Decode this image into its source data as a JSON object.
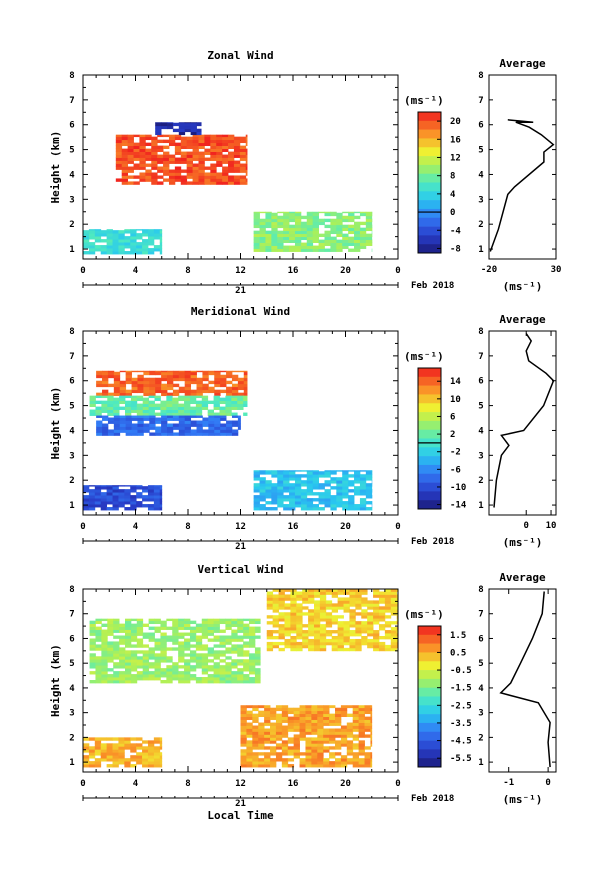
{
  "figure": {
    "date_label": "Feb 2018",
    "day_label": "21",
    "bottom_xlabel": "Local Time",
    "ylabel": "Height (km)",
    "cbar_unit": "(ms⁻¹)",
    "avg_title": "Average",
    "avg_unit": "(ms⁻¹)"
  },
  "chart_data": [
    {
      "type": "heatmap",
      "title": "Zonal Wind",
      "xlabel": "",
      "ylabel": "Height (km)",
      "xlim": [
        0,
        24
      ],
      "ylim": [
        0.6,
        8
      ],
      "x_ticks": [
        "0",
        "4",
        "8",
        "12",
        "16",
        "20",
        "0"
      ],
      "y_ticks": [
        "1",
        "2",
        "3",
        "4",
        "5",
        "6",
        "7",
        "8"
      ],
      "colorbar": {
        "unit": "(ms⁻¹)",
        "range": [
          -9,
          22
        ],
        "ticks": [
          "20",
          "16",
          "12",
          "8",
          "4",
          "0",
          "-4",
          "-8"
        ],
        "contour": 0
      },
      "regions": [
        {
          "label": "upper positive band",
          "x": [
            2.5,
            12.5
          ],
          "y": [
            3.6,
            5.6
          ],
          "value": 20
        },
        {
          "label": "upper negative patch",
          "x": [
            5.5,
            9
          ],
          "y": [
            5.6,
            6.1
          ],
          "value": -7
        },
        {
          "label": "lower boundary layer",
          "x": [
            0,
            6
          ],
          "y": [
            0.8,
            1.8
          ],
          "value": 5
        },
        {
          "label": "afternoon lower layer",
          "x": [
            13,
            22
          ],
          "y": [
            0.9,
            2.5
          ],
          "value": 9
        }
      ],
      "average": {
        "title": "Average",
        "xlim": [
          -20,
          30
        ],
        "x_ticks": [
          "-20",
          "30"
        ],
        "xlabel": "(ms⁻¹)",
        "profile": [
          [
            -19,
            0.9
          ],
          [
            -13,
            1.8
          ],
          [
            -6,
            3.2
          ],
          [
            -1,
            3.5
          ],
          [
            21,
            4.5
          ],
          [
            21,
            4.9
          ],
          [
            28,
            5.2
          ],
          [
            19,
            5.6
          ],
          [
            10,
            5.9
          ],
          [
            0,
            6.1
          ],
          [
            13,
            6.1
          ],
          [
            -6,
            6.2
          ]
        ]
      }
    },
    {
      "type": "heatmap",
      "title": "Meridional Wind",
      "xlabel": "",
      "ylabel": "Height (km)",
      "xlim": [
        0,
        24
      ],
      "ylim": [
        0.6,
        8
      ],
      "x_ticks": [
        "0",
        "4",
        "8",
        "12",
        "16",
        "20",
        "0"
      ],
      "y_ticks": [
        "1",
        "2",
        "3",
        "4",
        "5",
        "6",
        "7",
        "8"
      ],
      "colorbar": {
        "unit": "(ms⁻¹)",
        "range": [
          -15,
          17
        ],
        "ticks": [
          "14",
          "10",
          "6",
          "2",
          "-2",
          "-6",
          "-10",
          "-14"
        ],
        "contour": 0
      },
      "regions": [
        {
          "label": "upper layer strong positive",
          "x": [
            1,
            12.5
          ],
          "y": [
            5.4,
            6.4
          ],
          "value": 14
        },
        {
          "label": "upper layer transition",
          "x": [
            0.5,
            12.5
          ],
          "y": [
            4.6,
            5.4
          ],
          "value": 2
        },
        {
          "label": "upper layer negative",
          "x": [
            1,
            12
          ],
          "y": [
            3.8,
            4.6
          ],
          "value": -8
        },
        {
          "label": "lower layer negative",
          "x": [
            0,
            6
          ],
          "y": [
            0.8,
            1.8
          ],
          "value": -10
        },
        {
          "label": "afternoon lower layer",
          "x": [
            13,
            22
          ],
          "y": [
            0.8,
            2.4
          ],
          "value": -3
        }
      ],
      "average": {
        "title": "Average",
        "xlim": [
          -15,
          12
        ],
        "x_ticks": [
          "0",
          "10"
        ],
        "xlabel": "(ms⁻¹)",
        "profile": [
          [
            -13,
            0.9
          ],
          [
            -12,
            2.0
          ],
          [
            -10,
            3.0
          ],
          [
            -7,
            3.4
          ],
          [
            -10,
            3.8
          ],
          [
            -1,
            4.0
          ],
          [
            7,
            5.0
          ],
          [
            11,
            6.0
          ],
          [
            8,
            6.3
          ],
          [
            1,
            6.8
          ],
          [
            0,
            7.2
          ],
          [
            2,
            7.6
          ],
          [
            0,
            7.9
          ]
        ]
      }
    },
    {
      "type": "heatmap",
      "title": "Vertical Wind",
      "xlabel": "Local Time",
      "ylabel": "Height (km)",
      "xlim": [
        0,
        24
      ],
      "ylim": [
        0.6,
        8
      ],
      "x_ticks": [
        "0",
        "4",
        "8",
        "12",
        "16",
        "20",
        "0"
      ],
      "y_ticks": [
        "1",
        "2",
        "3",
        "4",
        "5",
        "6",
        "7",
        "8"
      ],
      "colorbar": {
        "unit": "(ms⁻¹)",
        "range": [
          -6,
          2
        ],
        "ticks": [
          "1.5",
          "0.5",
          "-0.5",
          "-1.5",
          "-2.5",
          "-3.5",
          "-4.5",
          "-5.5"
        ],
        "contour": null
      },
      "regions": [
        {
          "label": "upper layer",
          "x": [
            0.5,
            13.5
          ],
          "y": [
            4.2,
            6.8
          ],
          "value": -1.2
        },
        {
          "label": "lower layer",
          "x": [
            0,
            6
          ],
          "y": [
            0.8,
            2.0
          ],
          "value": 0.4
        },
        {
          "label": "afternoon lower layer",
          "x": [
            12,
            22
          ],
          "y": [
            0.8,
            3.3
          ],
          "value": 0.6
        },
        {
          "label": "upper sparse patches",
          "x": [
            14,
            24
          ],
          "y": [
            5.5,
            8.0
          ],
          "value": 0.1
        }
      ],
      "average": {
        "title": "Average",
        "xlim": [
          -1.5,
          0.2
        ],
        "x_ticks": [
          "-1",
          "0"
        ],
        "xlabel": "(ms⁻¹)",
        "profile": [
          [
            0.05,
            0.8
          ],
          [
            0.0,
            1.8
          ],
          [
            0.05,
            2.6
          ],
          [
            -0.25,
            3.4
          ],
          [
            -1.2,
            3.8
          ],
          [
            -0.95,
            4.2
          ],
          [
            -0.7,
            5.0
          ],
          [
            -0.4,
            6.0
          ],
          [
            -0.15,
            7.0
          ],
          [
            -0.1,
            7.9
          ]
        ]
      }
    }
  ]
}
